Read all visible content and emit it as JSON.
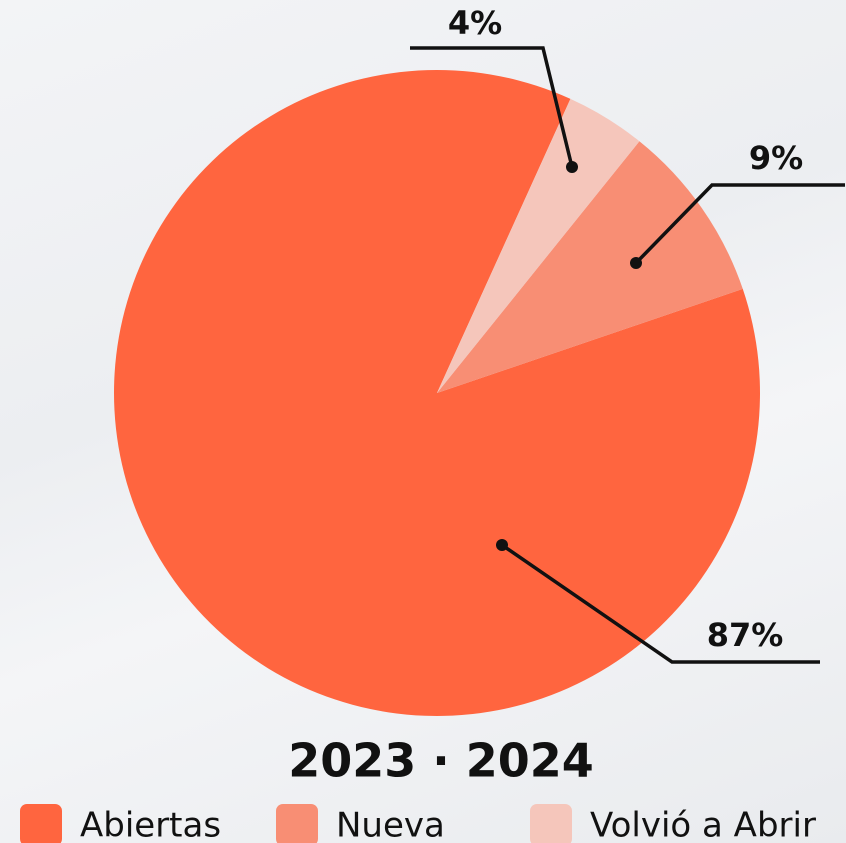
{
  "chart_data": {
    "type": "pie",
    "title": "2023 · 2024",
    "categories": [
      "Abiertas",
      "Nueva",
      "Volvió a Abrir"
    ],
    "values": [
      87,
      9,
      4
    ],
    "value_labels": [
      "87%",
      "9%",
      "4%"
    ],
    "colors": [
      "#ff653f",
      "#f88e74",
      "#f5c6bb"
    ]
  }
}
